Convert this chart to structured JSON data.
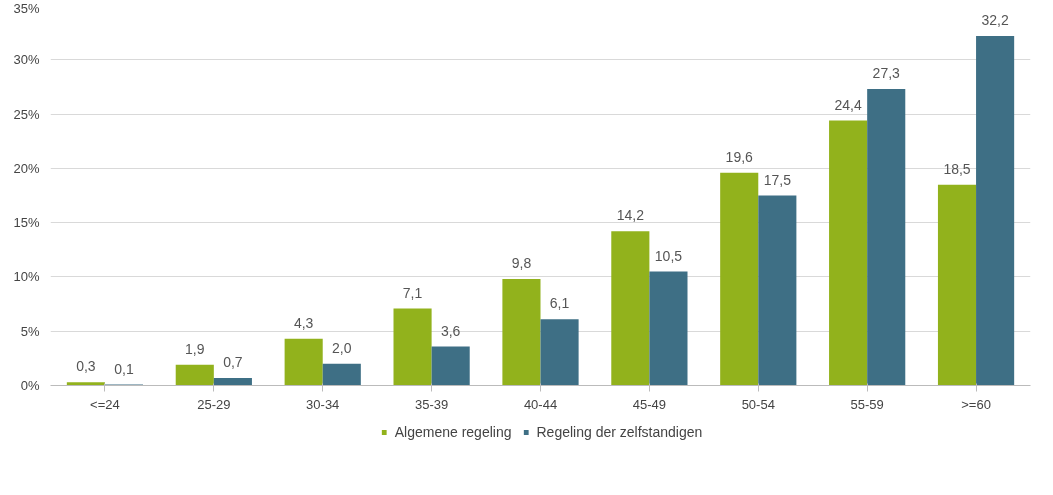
{
  "chart_data": {
    "type": "bar",
    "categories": [
      "<=24",
      "25-29",
      "30-34",
      "35-39",
      "40-44",
      "45-49",
      "50-54",
      "55-59",
      ">=60"
    ],
    "series": [
      {
        "name": "Algemene regeling",
        "color": "#92b21c",
        "values": [
          0.3,
          1.9,
          4.3,
          7.1,
          9.8,
          14.2,
          19.6,
          24.4,
          18.5
        ],
        "value_labels": [
          "0,3",
          "1,9",
          "4,3",
          "7,1",
          "9,8",
          "14,2",
          "19,6",
          "24,4",
          "18,5"
        ]
      },
      {
        "name": "Regeling der zelfstandigen",
        "color": "#3e6f85",
        "values": [
          0.1,
          0.7,
          2.0,
          3.6,
          6.1,
          10.5,
          17.5,
          27.3,
          32.2
        ],
        "value_labels": [
          "0,1",
          "0,7",
          "2,0",
          "3,6",
          "6,1",
          "10,5",
          "17,5",
          "27,3",
          "32,2"
        ]
      }
    ],
    "ylim": [
      0,
      35
    ],
    "yticks": [
      {
        "value": 0,
        "label": "0%"
      },
      {
        "value": 5,
        "label": "5%"
      },
      {
        "value": 10,
        "label": "10%"
      },
      {
        "value": 15,
        "label": "15%"
      },
      {
        "value": 20,
        "label": "20%"
      },
      {
        "value": 25,
        "label": "25%"
      },
      {
        "value": 30,
        "label": "30%"
      },
      {
        "value": 35,
        "label": "35%"
      }
    ],
    "grid": "y",
    "legend": "bottom"
  }
}
